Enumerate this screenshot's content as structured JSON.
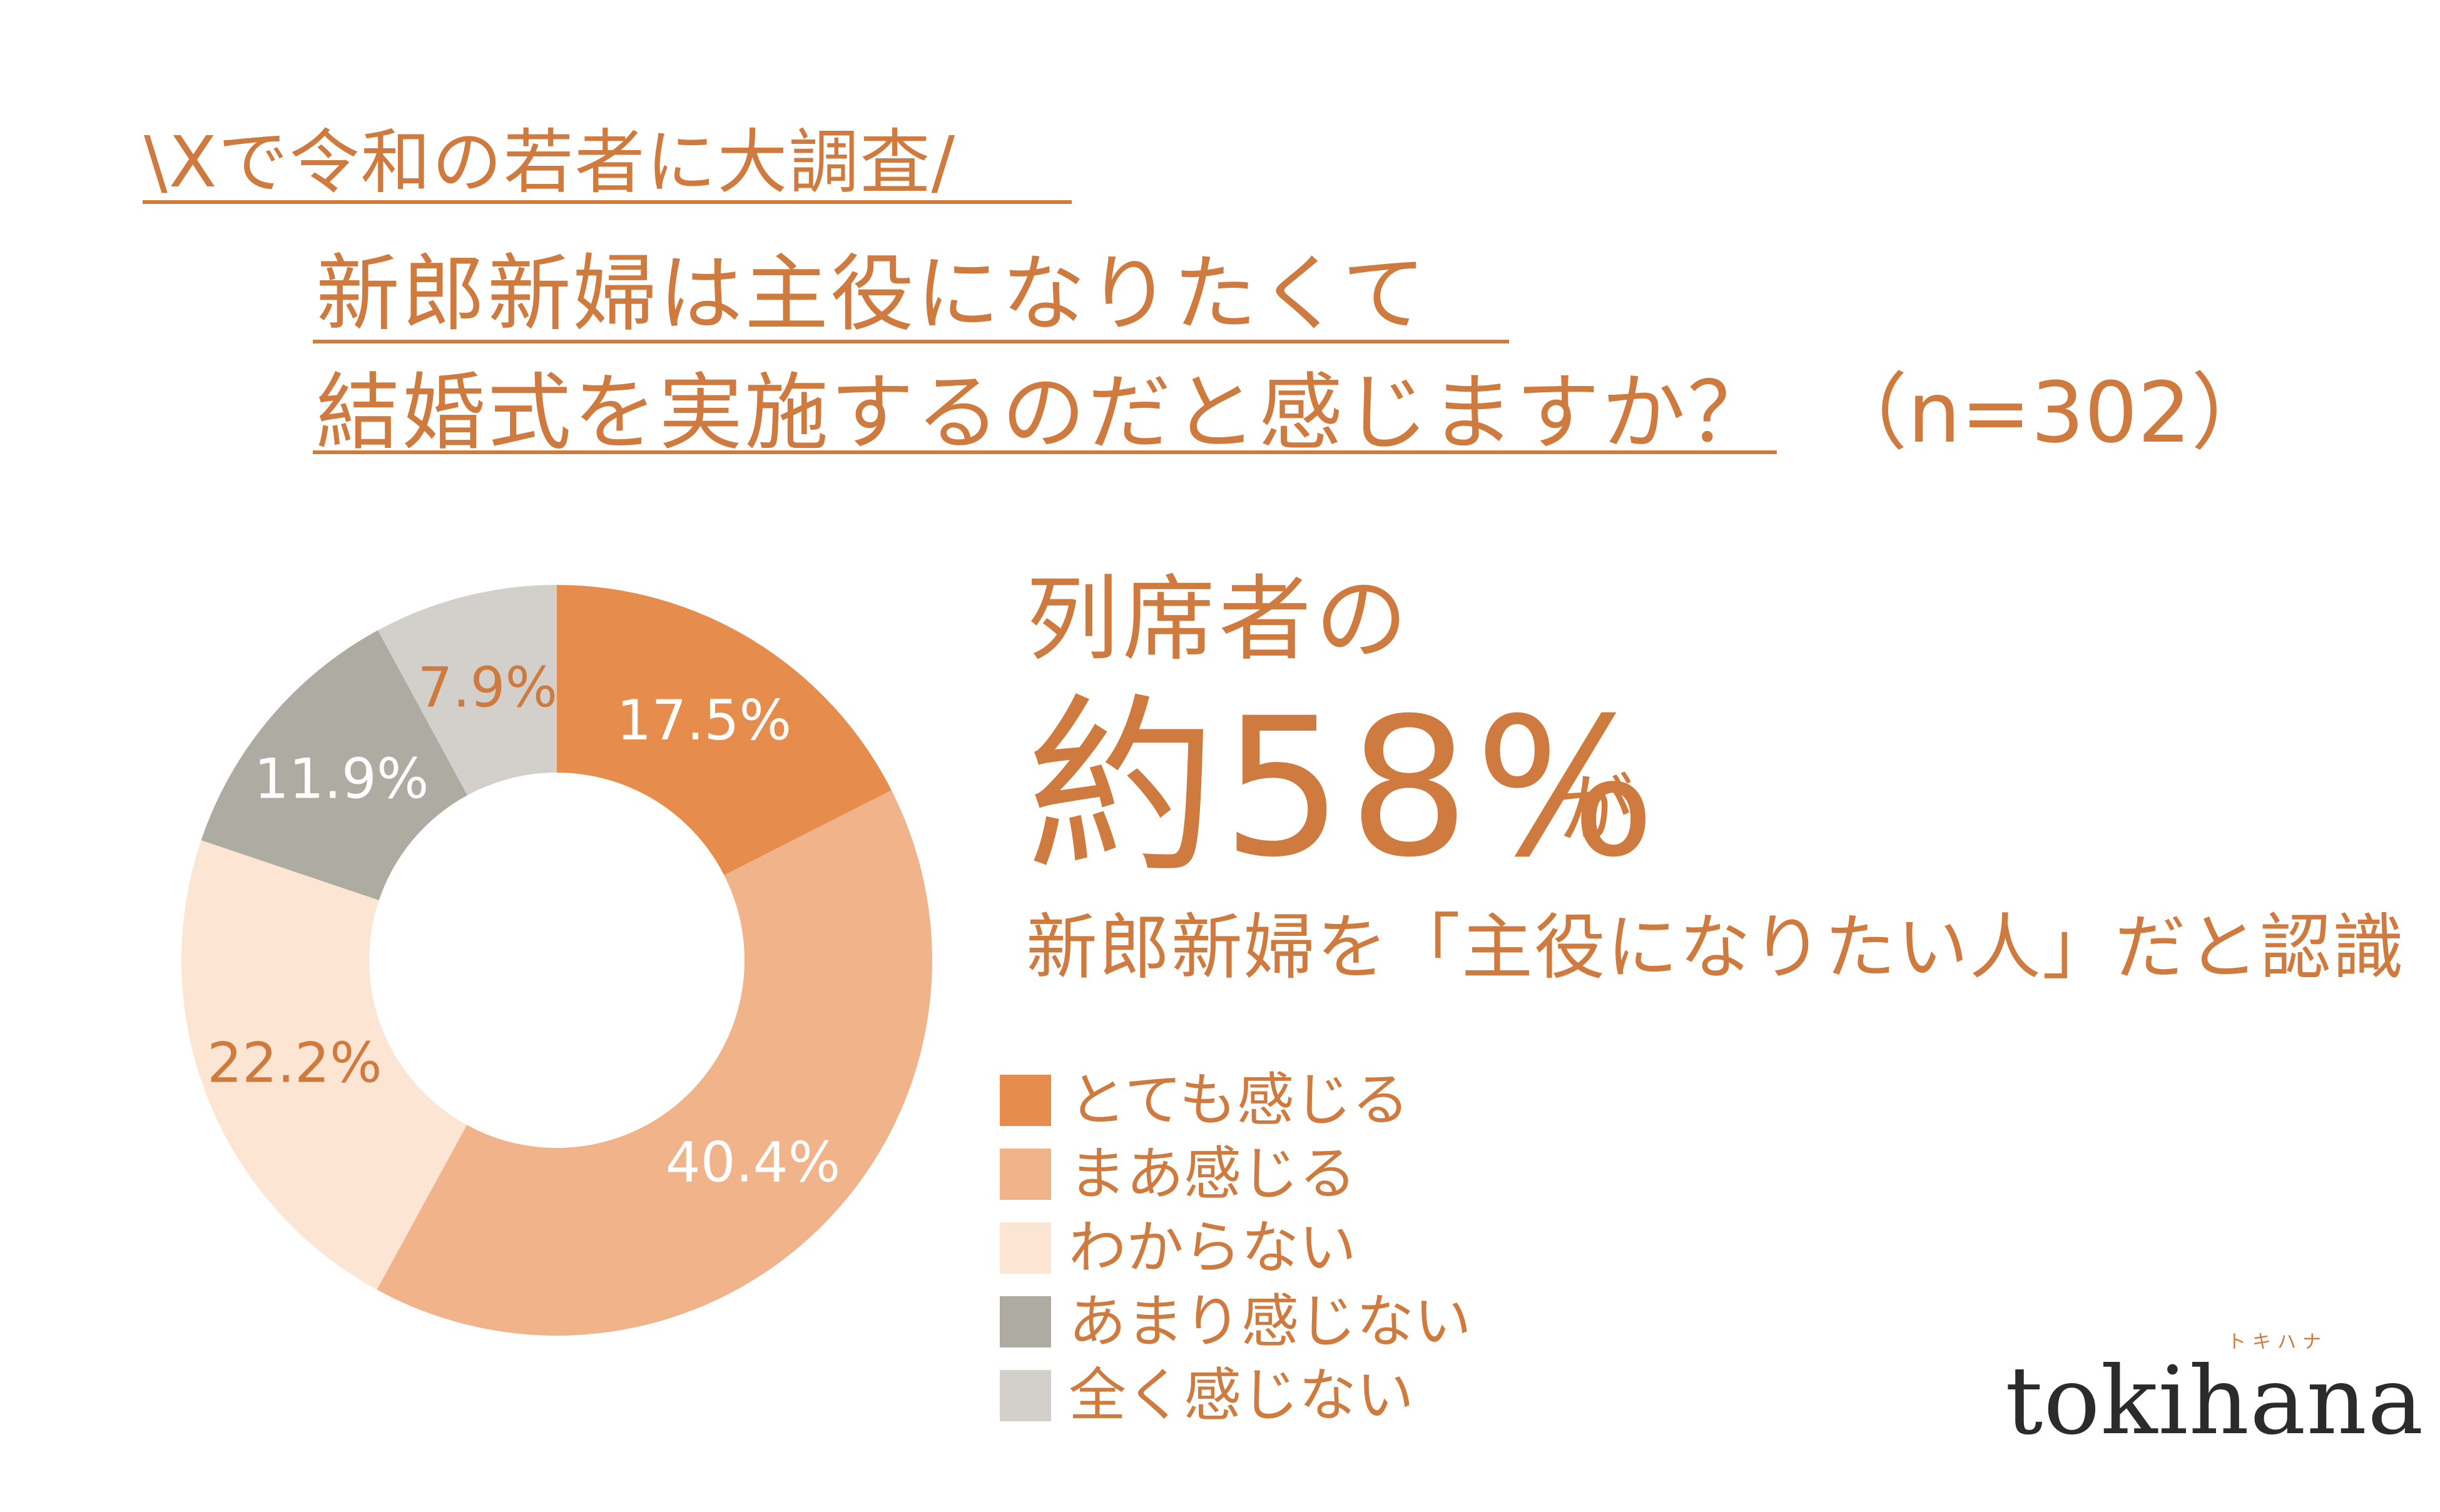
{
  "header": {
    "kicker": "\\Xで令和の若者に大調査/",
    "title_line1": "新郎新婦は主役になりたくて",
    "title_line2": "結婚式を実施するのだと感じますか？",
    "sample_size": "（n=302）"
  },
  "highlight": {
    "line1": "列席者の",
    "big": "約58%",
    "suffix": "が",
    "line3": "新郎新婦を「主役になりたい人」だと認識"
  },
  "brand": {
    "logo": "tokihana",
    "kana": "トキハナ"
  },
  "colors": {
    "accent": "#cf7a3e"
  },
  "chart_data": {
    "type": "pie",
    "donut": true,
    "categories": [
      "とても感じる",
      "まあ感じる",
      "わからない",
      "あまり感じない",
      "全く感じない"
    ],
    "values": [
      17.5,
      40.4,
      22.2,
      11.9,
      7.9
    ],
    "labels": [
      "17.5%",
      "40.4%",
      "22.2%",
      "11.9%",
      "7.9%"
    ],
    "colors": [
      "#e68c4d",
      "#f0b38a",
      "#fde5d4",
      "#aeaba3",
      "#d3d0cb"
    ],
    "label_colors": [
      "#ffffff",
      "#ffffff",
      "#cf7a3e",
      "#ffffff",
      "#cf7a3e"
    ],
    "start": "top",
    "direction": "clockwise",
    "legend_position": "bottom-right"
  }
}
